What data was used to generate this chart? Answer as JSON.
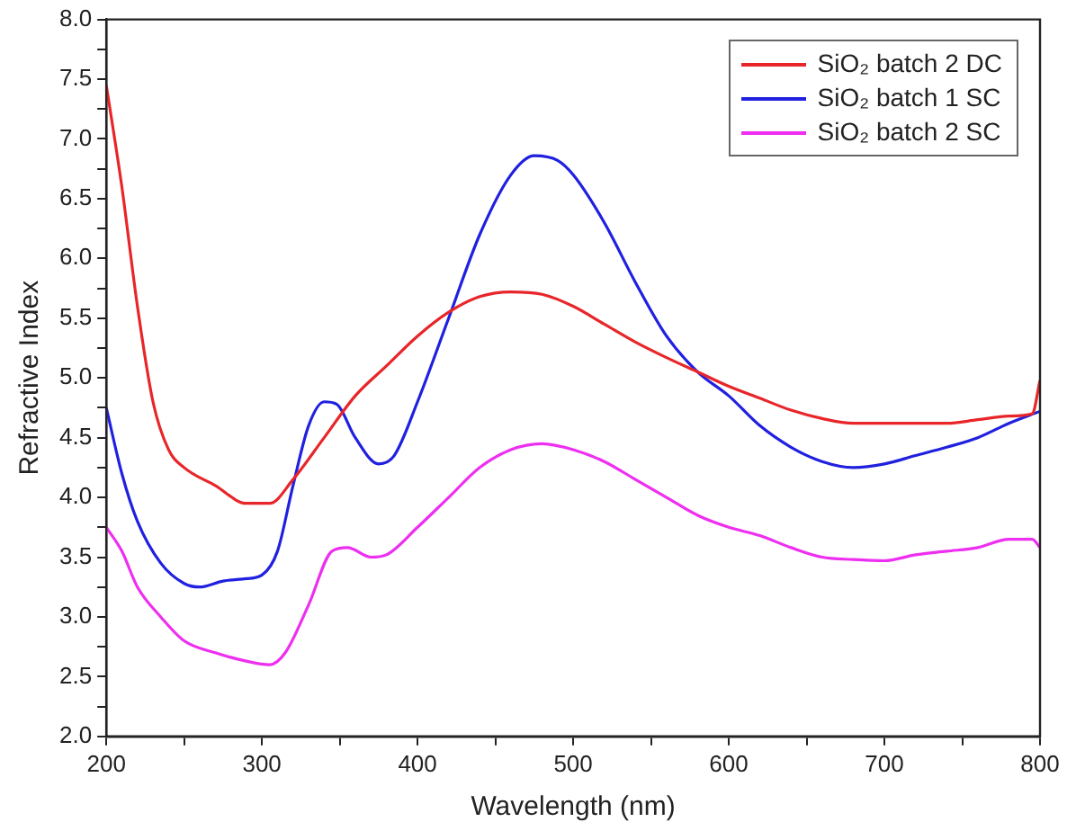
{
  "chart_data": {
    "type": "line",
    "xlabel": "Wavelength (nm)",
    "ylabel": "Refractive Index",
    "xlim": [
      200,
      800
    ],
    "xticks": [
      200,
      {
        "value": 250,
        "label": null
      },
      300,
      {
        "value": 350,
        "label": null
      },
      400,
      {
        "value": 450,
        "label": null
      },
      500,
      {
        "value": 550,
        "label": null
      },
      600,
      {
        "value": 650,
        "label": null
      },
      700,
      {
        "value": 750,
        "label": null
      },
      800
    ],
    "ylim": [
      2,
      8
    ],
    "yticks": [
      {
        "value": 2,
        "label": "2.0"
      },
      {
        "value": 2.25,
        "label": null
      },
      {
        "value": 2.5,
        "label": "2.5"
      },
      {
        "value": 2.75,
        "label": null
      },
      {
        "value": 3,
        "label": "3.0"
      },
      {
        "value": 3.25,
        "label": null
      },
      {
        "value": 3.5,
        "label": "3.5"
      },
      {
        "value": 3.75,
        "label": null
      },
      {
        "value": 4,
        "label": "4.0"
      },
      {
        "value": 4.25,
        "label": null
      },
      {
        "value": 4.5,
        "label": "4.5"
      },
      {
        "value": 4.75,
        "label": null
      },
      {
        "value": 5,
        "label": "5.0"
      },
      {
        "value": 5.25,
        "label": null
      },
      {
        "value": 5.5,
        "label": "5.5"
      },
      {
        "value": 5.75,
        "label": null
      },
      {
        "value": 6,
        "label": "6.0"
      },
      {
        "value": 6.25,
        "label": null
      },
      {
        "value": 6.5,
        "label": "6.5"
      },
      {
        "value": 6.75,
        "label": null
      },
      {
        "value": 7,
        "label": "7.0"
      },
      {
        "value": 7.25,
        "label": null
      },
      {
        "value": 7.5,
        "label": "7.5"
      },
      {
        "value": 7.75,
        "label": null
      },
      {
        "value": 8,
        "label": "8.0"
      }
    ],
    "grid": false,
    "legend": "top right",
    "marker": "none",
    "line_style": "solid",
    "series": [
      {
        "name": "SiO₂ batch 2 DC",
        "color": "#e8262a",
        "x": [
          200,
          210,
          220,
          230,
          240,
          250,
          270,
          290,
          305,
          320,
          340,
          360,
          380,
          400,
          420,
          440,
          460,
          480,
          500,
          520,
          540,
          560,
          580,
          600,
          620,
          640,
          660,
          680,
          700,
          720,
          740,
          760,
          780,
          795,
          800
        ],
        "values": [
          7.45,
          6.6,
          5.6,
          4.8,
          4.4,
          4.25,
          4.1,
          3.95,
          3.95,
          4.15,
          4.5,
          4.85,
          5.1,
          5.35,
          5.55,
          5.68,
          5.72,
          5.7,
          5.6,
          5.45,
          5.3,
          5.17,
          5.05,
          4.93,
          4.83,
          4.73,
          4.66,
          4.62,
          4.62,
          4.62,
          4.62,
          4.65,
          4.68,
          4.7,
          4.98
        ]
      },
      {
        "name": "SiO₂ batch 1 SC",
        "color": "#2020e0",
        "x": [
          200,
          210,
          220,
          235,
          250,
          260,
          275,
          290,
          300,
          310,
          320,
          330,
          340,
          348,
          360,
          375,
          385,
          400,
          420,
          440,
          460,
          475,
          490,
          500,
          520,
          540,
          560,
          580,
          600,
          620,
          640,
          660,
          680,
          700,
          720,
          740,
          760,
          780,
          800
        ],
        "values": [
          4.75,
          4.2,
          3.8,
          3.45,
          3.28,
          3.25,
          3.3,
          3.32,
          3.35,
          3.55,
          4.1,
          4.6,
          4.8,
          4.78,
          4.5,
          4.28,
          4.35,
          4.8,
          5.5,
          6.2,
          6.7,
          6.86,
          6.82,
          6.7,
          6.3,
          5.8,
          5.35,
          5.05,
          4.85,
          4.6,
          4.42,
          4.3,
          4.25,
          4.28,
          4.35,
          4.42,
          4.5,
          4.62,
          4.72
        ]
      },
      {
        "name": "SiO₂ batch 2 SC",
        "color": "#ee2ef0",
        "x": [
          200,
          210,
          220,
          235,
          250,
          270,
          290,
          305,
          315,
          330,
          345,
          355,
          370,
          380,
          400,
          420,
          440,
          460,
          480,
          500,
          520,
          540,
          560,
          580,
          600,
          620,
          640,
          660,
          680,
          700,
          720,
          740,
          760,
          780,
          795,
          800
        ],
        "values": [
          3.75,
          3.55,
          3.25,
          3.0,
          2.8,
          2.7,
          2.63,
          2.6,
          2.7,
          3.1,
          3.55,
          3.58,
          3.5,
          3.52,
          3.75,
          4.0,
          4.25,
          4.4,
          4.45,
          4.4,
          4.3,
          4.15,
          4.0,
          3.85,
          3.75,
          3.68,
          3.58,
          3.5,
          3.48,
          3.47,
          3.52,
          3.55,
          3.58,
          3.65,
          3.65,
          3.58
        ]
      }
    ]
  }
}
